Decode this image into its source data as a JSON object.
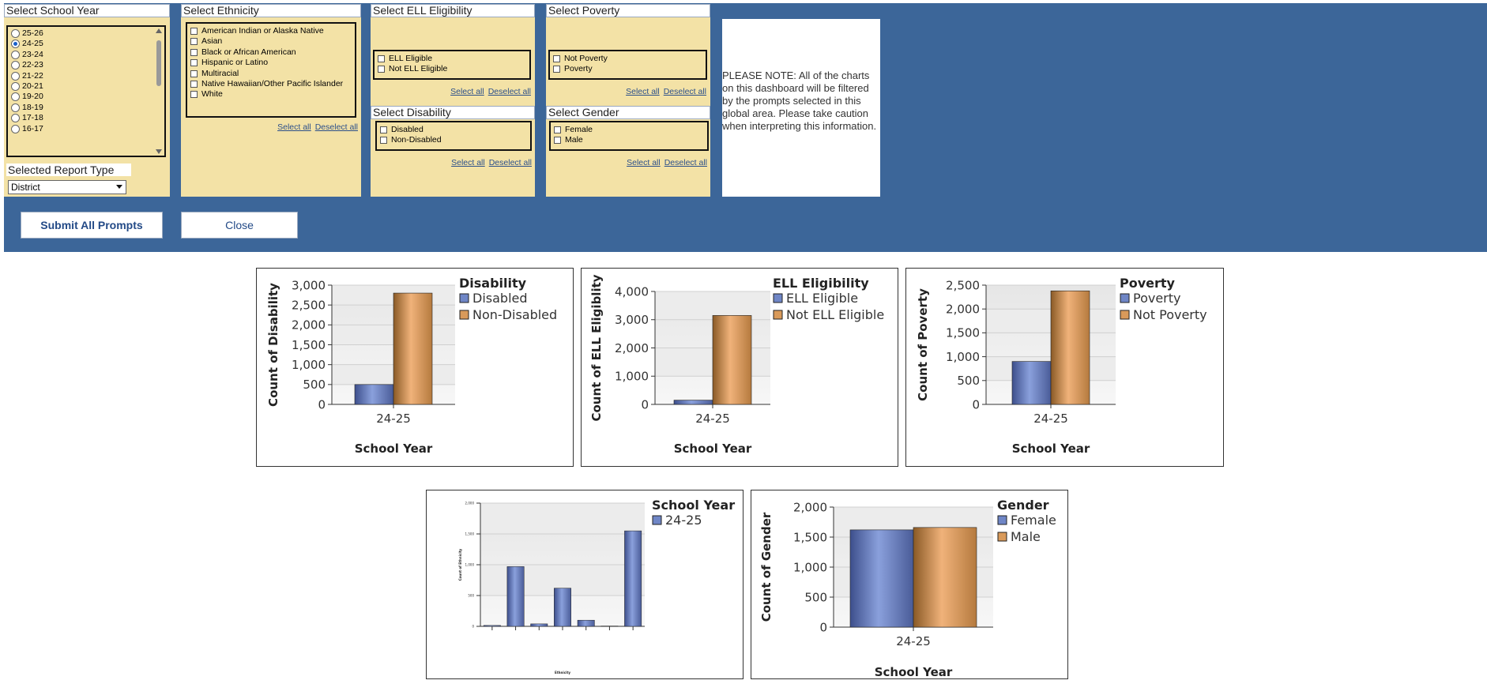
{
  "prompts": {
    "school_year": {
      "title": "Select School Year",
      "options": [
        "25-26",
        "24-25",
        "23-24",
        "22-23",
        "21-22",
        "20-21",
        "19-20",
        "18-19",
        "17-18",
        "16-17"
      ],
      "selected": "24-25"
    },
    "report_type": {
      "label": "Selected Report Type",
      "value": "District"
    },
    "ethnicity": {
      "title": "Select Ethnicity",
      "options": [
        "American Indian or Alaska Native",
        "Asian",
        "Black or African American",
        "Hispanic or Latino",
        "Multiracial",
        "Native Hawaiian/Other Pacific Islander",
        "White"
      ]
    },
    "ell": {
      "title": "Select ELL Eligibility",
      "options": [
        "ELL Eligible",
        "Not ELL Eligible"
      ]
    },
    "disability": {
      "title": "Select Disability",
      "options": [
        "Disabled",
        "Non-Disabled"
      ]
    },
    "poverty": {
      "title": "Select Poverty",
      "options": [
        "Not Poverty",
        "Poverty"
      ]
    },
    "gender": {
      "title": "Select Gender",
      "options": [
        "Female",
        "Male"
      ]
    },
    "select_all": "Select all",
    "deselect_all": "Deselect all",
    "note": "PLEASE NOTE: All of the charts on this dashboard will be filtered by the prompts selected in this global area.  Please take caution when interpreting this information."
  },
  "buttons": {
    "submit": "Submit All Prompts",
    "close": "Close"
  },
  "colors": {
    "band": "#3c6699",
    "panel": "#f3e2a6",
    "series_blue": "#6f86c6",
    "series_orange": "#d99a5a"
  },
  "chart_data": [
    {
      "type": "bar",
      "categories": [
        "24-25"
      ],
      "ylabel": "Count of Disability",
      "xlabel": "School Year",
      "legend_title": "Disability",
      "ylim": [
        0,
        3000
      ],
      "yticks": [
        0,
        500,
        1000,
        1500,
        2000,
        2500,
        3000
      ],
      "series": [
        {
          "name": "Disabled",
          "values": [
            500
          ]
        },
        {
          "name": "Non-Disabled",
          "values": [
            2800
          ]
        }
      ]
    },
    {
      "type": "bar",
      "categories": [
        "24-25"
      ],
      "ylabel": "Count of ELL Eligiblity",
      "xlabel": "School Year",
      "legend_title": "ELL Eligibility",
      "ylim": [
        0,
        4000
      ],
      "yticks": [
        0,
        1000,
        2000,
        3000,
        4000
      ],
      "series": [
        {
          "name": "ELL Eligible",
          "values": [
            150
          ]
        },
        {
          "name": "Not ELL Eligible",
          "values": [
            3150
          ]
        }
      ]
    },
    {
      "type": "bar",
      "categories": [
        "24-25"
      ],
      "ylabel": "Count of Poverty",
      "xlabel": "School Year",
      "legend_title": "Poverty",
      "ylim": [
        0,
        2500
      ],
      "yticks": [
        0,
        500,
        1000,
        1500,
        2000,
        2500
      ],
      "series": [
        {
          "name": "Poverty",
          "values": [
            900
          ]
        },
        {
          "name": "Not Poverty",
          "values": [
            2380
          ]
        }
      ]
    },
    {
      "type": "bar",
      "categories": [
        "",
        "",
        "",
        "",
        "",
        "",
        ""
      ],
      "ylabel": "Count of Ethnicity",
      "xlabel": "Ethnicity",
      "legend_title": "School Year",
      "ylim": [
        0,
        2000
      ],
      "yticks": [
        0,
        500,
        1000,
        1500,
        2000
      ],
      "series": [
        {
          "name": "24-25",
          "values": [
            15,
            970,
            40,
            620,
            100,
            5,
            1550
          ]
        }
      ]
    },
    {
      "type": "bar",
      "categories": [
        "24-25"
      ],
      "ylabel": "Count of Gender",
      "xlabel": "School Year",
      "legend_title": "Gender",
      "ylim": [
        0,
        2000
      ],
      "yticks": [
        0,
        500,
        1000,
        1500,
        2000
      ],
      "series": [
        {
          "name": "Female",
          "values": [
            1620
          ]
        },
        {
          "name": "Male",
          "values": [
            1660
          ]
        }
      ]
    }
  ]
}
